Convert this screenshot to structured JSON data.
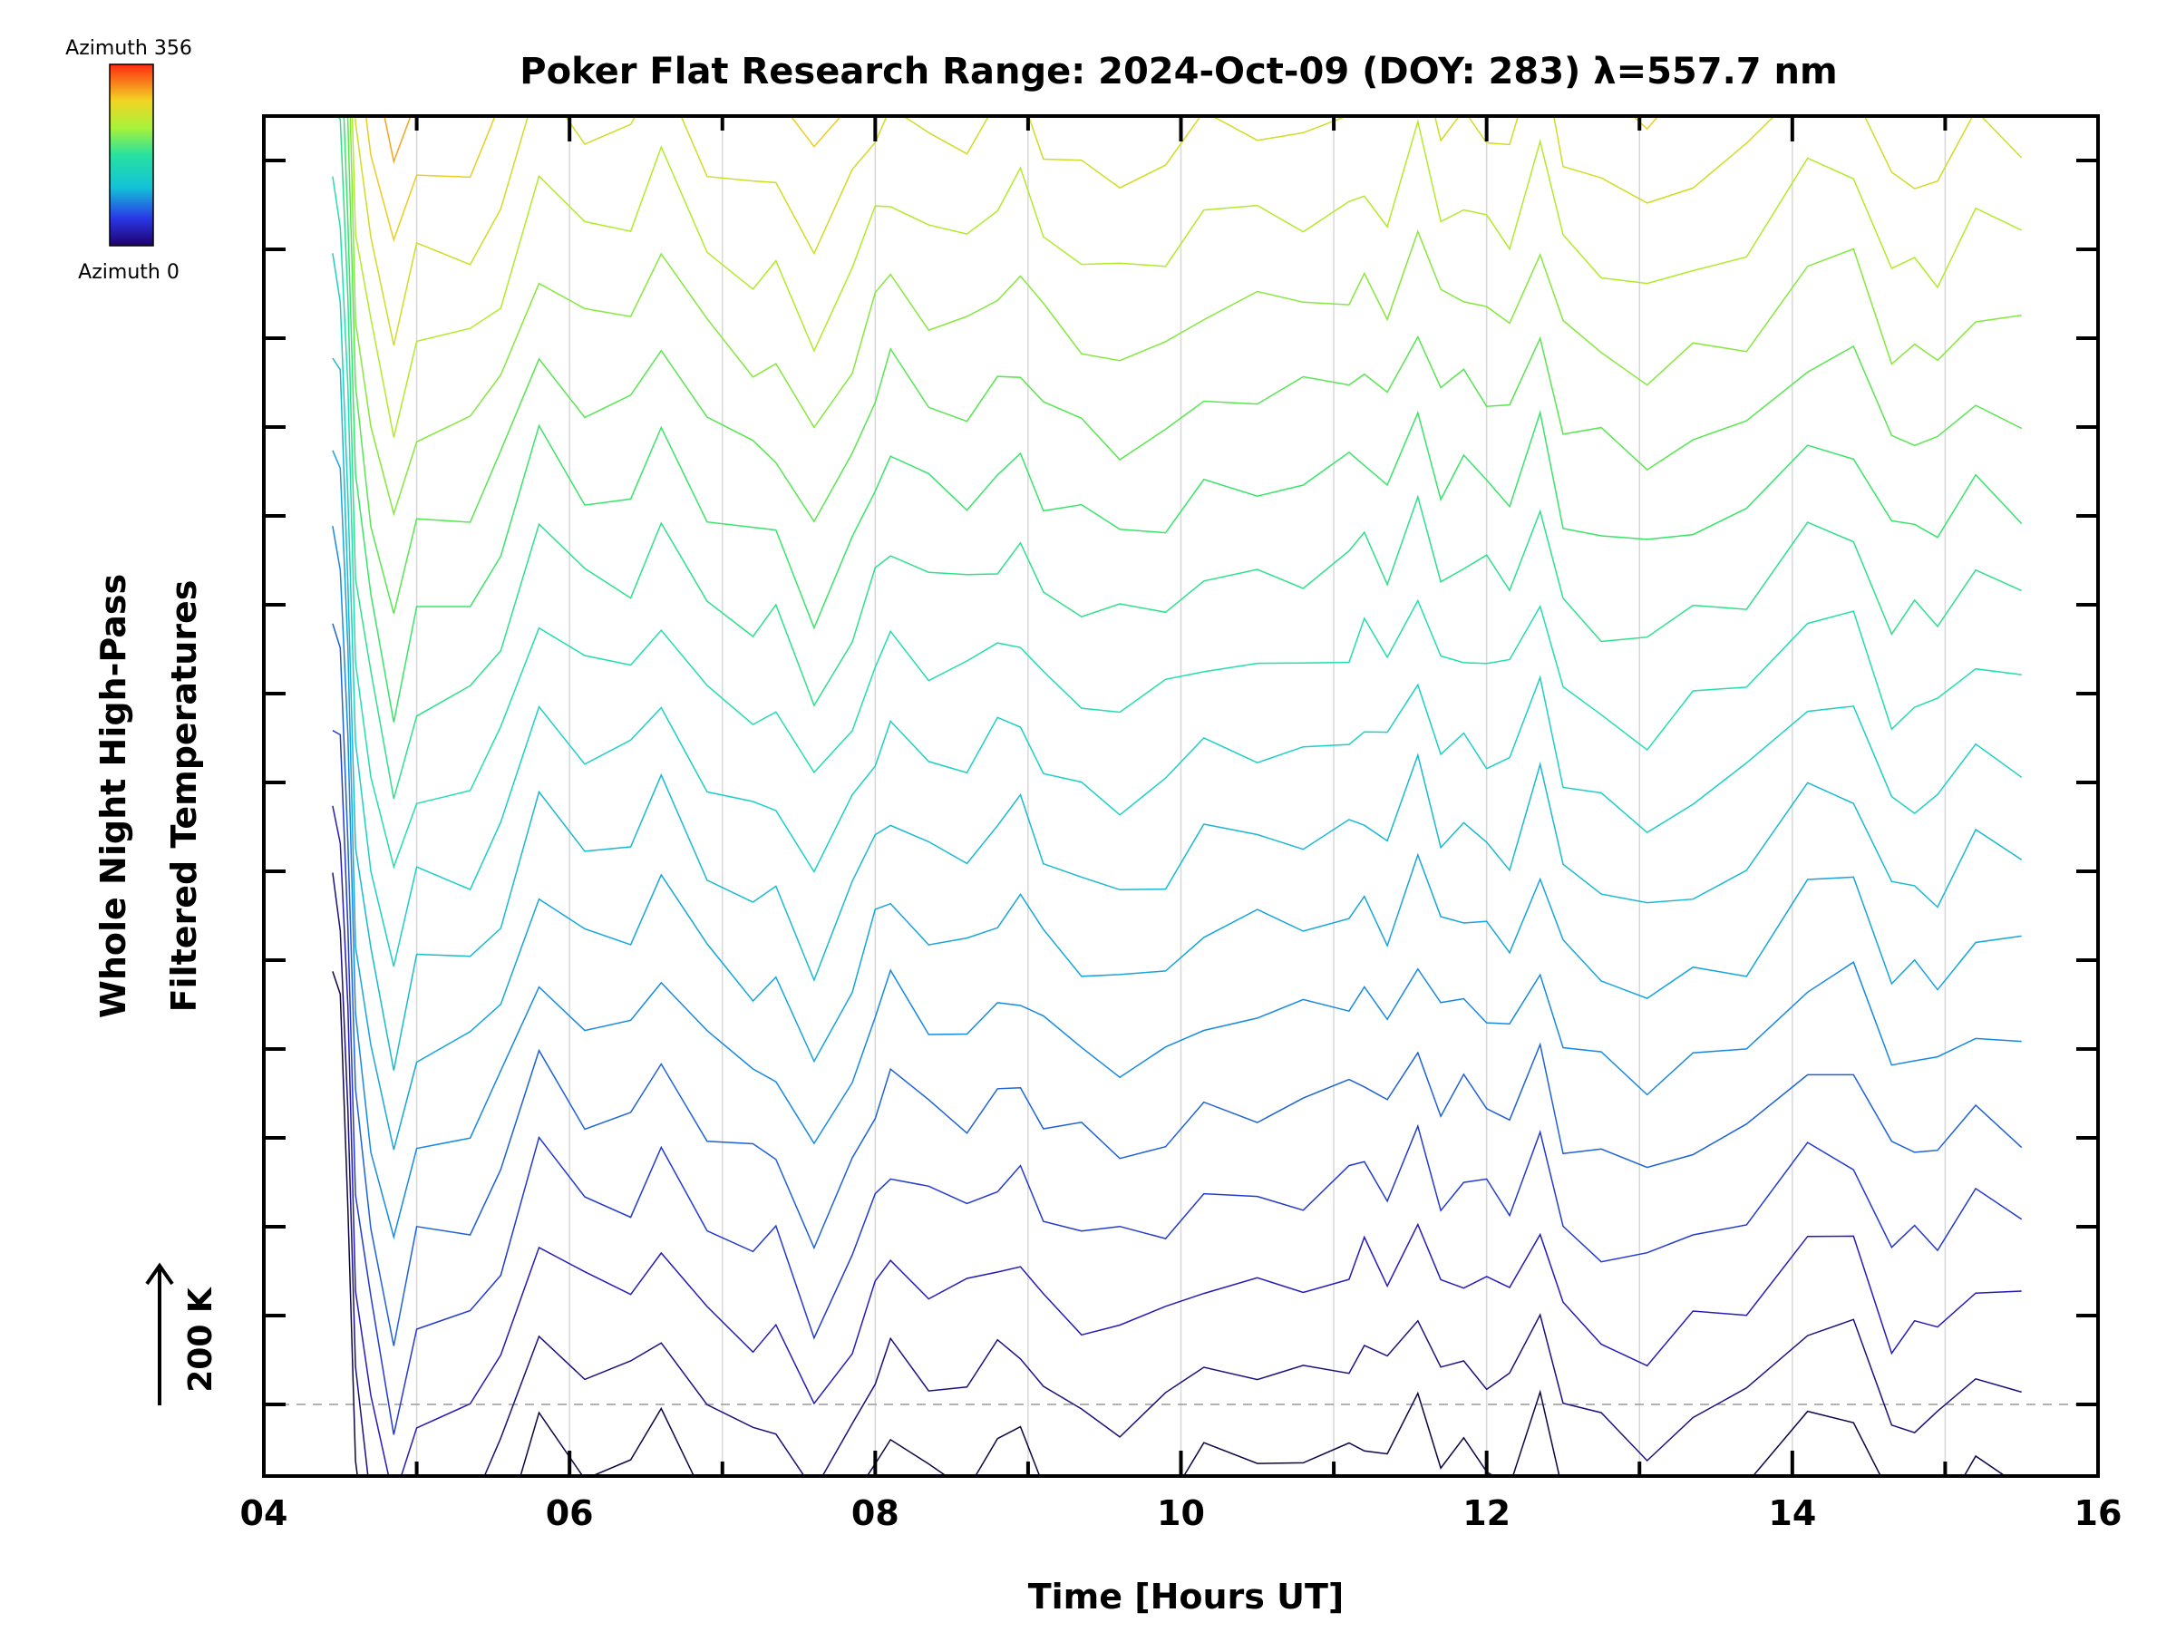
{
  "chart_data": {
    "type": "line",
    "title": "Poker Flat Research Range: 2024-Oct-09 (DOY: 283) λ=557.7 nm",
    "xlabel": "Time [Hours UT]",
    "ylabel_line1": "Whole Night High-Pass",
    "ylabel_line2": "Filtered Temperatures",
    "xlim": [
      4,
      16
    ],
    "x_ticks": [
      4,
      6,
      8,
      10,
      12,
      14,
      16
    ],
    "x_tick_labels": [
      "04",
      "06",
      "08",
      "10",
      "12",
      "14",
      "16"
    ],
    "x_minor_step": 1,
    "y_tick_count": 15,
    "y_tick_labels_shown": false,
    "scale_bar": {
      "label": "200 K",
      "value_k": 200
    },
    "baseline_dashed": true,
    "grid_x": true,
    "colorbar": {
      "top_label": "Azimuth 356",
      "bottom_label": "Azimuth 0",
      "min": 0,
      "max": 356,
      "colormap": "rainbow"
    },
    "n_series": 100,
    "series_spacing_k": 125,
    "series_color_cycle": 20,
    "time_samples": [
      4.45,
      4.5,
      4.55,
      4.6,
      4.7,
      4.85,
      5.0,
      5.35,
      5.55,
      5.8,
      6.1,
      6.4,
      6.6,
      6.9,
      7.2,
      7.35,
      7.6,
      7.85,
      8.0,
      8.1,
      8.35,
      8.6,
      8.8,
      8.95,
      9.1,
      9.35,
      9.6,
      9.9,
      10.15,
      10.5,
      10.8,
      11.1,
      11.2,
      11.35,
      11.55,
      11.7,
      11.85,
      12.0,
      12.15,
      12.35,
      12.5,
      12.75,
      13.05,
      13.35,
      13.7,
      14.1,
      14.4,
      14.65,
      14.8,
      14.95,
      15.2,
      15.5
    ],
    "mean_profile_k": [
      600,
      560,
      300,
      -80,
      -260,
      -420,
      -260,
      -250,
      -180,
      -20,
      -90,
      -90,
      -40,
      -120,
      -160,
      -150,
      -280,
      -160,
      -80,
      -40,
      -90,
      -100,
      -60,
      -60,
      -100,
      -130,
      -150,
      -130,
      -80,
      -80,
      -80,
      -60,
      -40,
      -80,
      -20,
      -80,
      -60,
      -80,
      -100,
      -20,
      -120,
      -150,
      -180,
      -140,
      -120,
      -20,
      -20,
      -150,
      -140,
      -150,
      -100,
      -110
    ],
    "azimuth_pattern_k": [
      0,
      0,
      0,
      0,
      20,
      30,
      0,
      0,
      0,
      0,
      0,
      0,
      30,
      0,
      0,
      0,
      20,
      0,
      0,
      0,
      0,
      0,
      0,
      20,
      0,
      0,
      0,
      0,
      0,
      0,
      0,
      0,
      0,
      0,
      40,
      0,
      0,
      0,
      0,
      30,
      0,
      0,
      0,
      0,
      0,
      0,
      0,
      0,
      0,
      0,
      20,
      0
    ]
  }
}
